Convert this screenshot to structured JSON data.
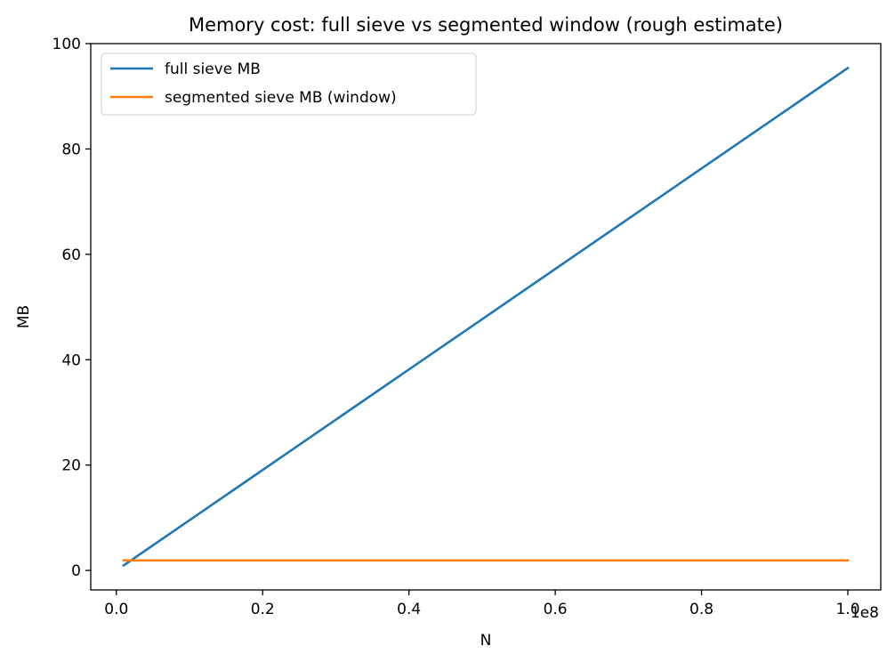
{
  "chart_data": {
    "type": "line",
    "title": "Memory cost: full sieve vs segmented window (rough estimate)",
    "xlabel": "N",
    "ylabel": "MB",
    "x_offset_label": "1e8",
    "xlim": [
      -3500000,
      104500000
    ],
    "ylim": [
      -3.7,
      100
    ],
    "x_ticks": [
      0,
      20000000,
      40000000,
      60000000,
      80000000,
      100000000
    ],
    "x_tick_labels": [
      "0.0",
      "0.2",
      "0.4",
      "0.6",
      "0.8",
      "1.0"
    ],
    "y_ticks": [
      0,
      20,
      40,
      60,
      80,
      100
    ],
    "y_tick_labels": [
      "0",
      "20",
      "40",
      "60",
      "80",
      "100"
    ],
    "grid": false,
    "legend": "upper-left",
    "series": [
      {
        "name": "full sieve MB",
        "color": "#1f77b4",
        "x": [
          1000000,
          100000000
        ],
        "y": [
          0.95,
          95.37
        ]
      },
      {
        "name": "segmented sieve MB (window)",
        "color": "#ff7f0e",
        "x": [
          1000000,
          100000000
        ],
        "y": [
          1.9,
          1.9
        ]
      }
    ]
  }
}
